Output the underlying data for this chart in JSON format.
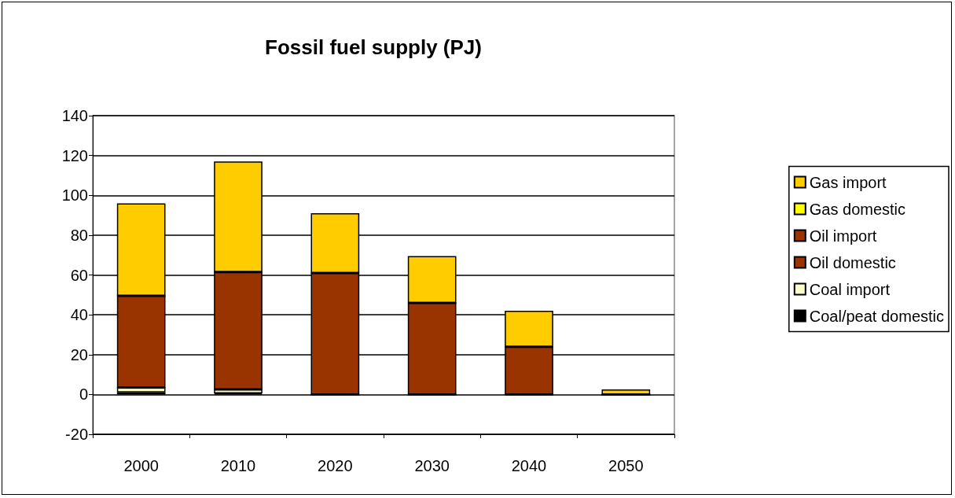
{
  "chart_data": {
    "type": "bar",
    "title": "Fossil fuel supply (PJ)",
    "stacked": true,
    "categories": [
      "2000",
      "2010",
      "2020",
      "2030",
      "2040",
      "2050"
    ],
    "series": [
      {
        "name": "Coal/peat domestic",
        "color": "#000000",
        "values": [
          1,
          0.5,
          0,
          0,
          0,
          0
        ]
      },
      {
        "name": "Coal import",
        "color": "#ffffcc",
        "values": [
          2.5,
          2,
          0,
          0,
          0,
          0
        ]
      },
      {
        "name": "Oil domestic",
        "color": "#993300",
        "values": [
          0,
          0,
          0,
          0,
          0,
          0
        ]
      },
      {
        "name": "Oil import",
        "color": "#993300",
        "values": [
          46,
          59,
          61,
          46,
          24,
          0
        ]
      },
      {
        "name": "Gas domestic",
        "color": "#ffff00",
        "values": [
          0,
          0,
          0,
          0,
          0,
          0
        ]
      },
      {
        "name": "Gas import",
        "color": "#ffcc00",
        "values": [
          46.5,
          55.5,
          30,
          23.5,
          18,
          2.5
        ]
      }
    ],
    "ylim": [
      -20,
      140
    ],
    "yticks": [
      -20,
      0,
      20,
      40,
      60,
      80,
      100,
      120,
      140
    ],
    "grid": "y",
    "legend": "right"
  }
}
